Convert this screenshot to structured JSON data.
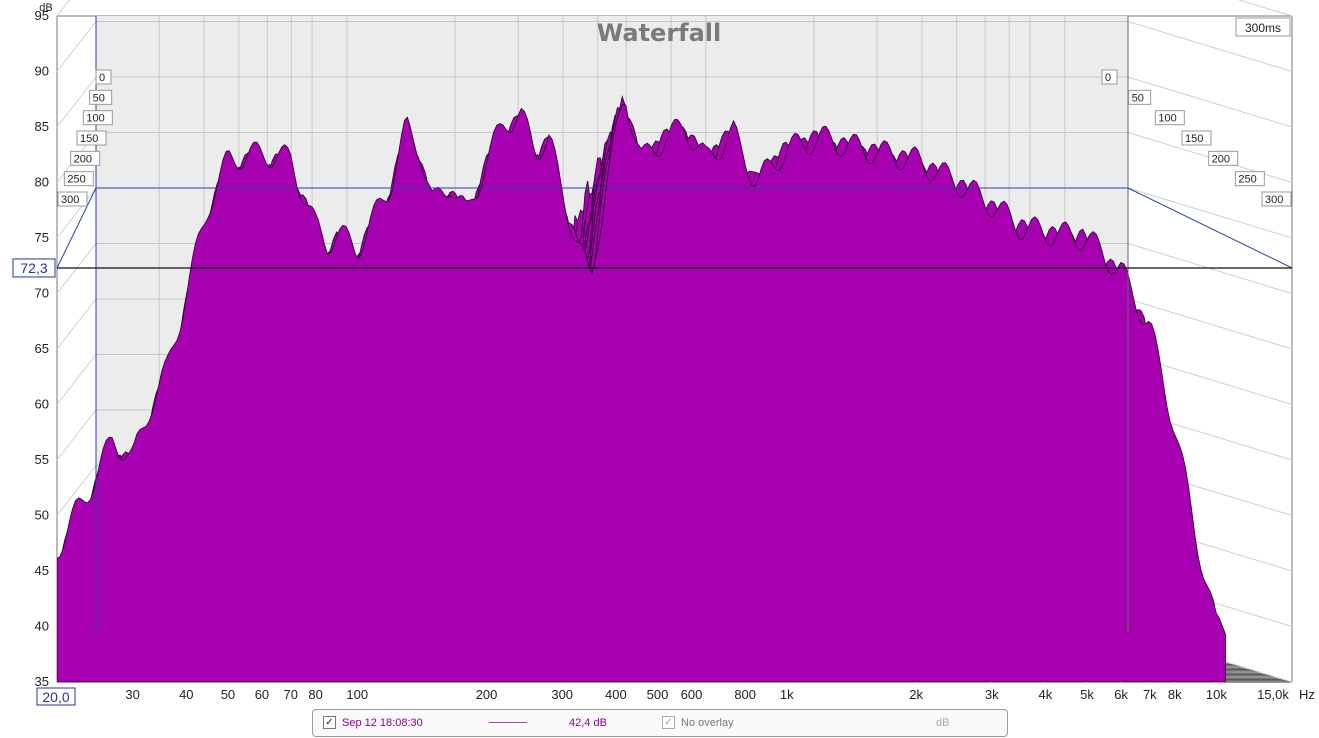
{
  "chart_data": {
    "type": "waterfall",
    "title": "Waterfall",
    "time_range_label": "300ms",
    "ylabel": "dB",
    "xlabel": "Hz",
    "ylim": [
      35,
      95
    ],
    "xlim": [
      20,
      15000
    ],
    "x_scale": "log",
    "y_ticks": [
      "35",
      "40",
      "45",
      "50",
      "55",
      "60",
      "65",
      "70",
      "75",
      "80",
      "85",
      "90",
      "95"
    ],
    "x_ticks": [
      {
        "value": 30,
        "label": "30"
      },
      {
        "value": 40,
        "label": "40"
      },
      {
        "value": 50,
        "label": "50"
      },
      {
        "value": 60,
        "label": "60"
      },
      {
        "value": 70,
        "label": "70"
      },
      {
        "value": 80,
        "label": "80"
      },
      {
        "value": 100,
        "label": "100"
      },
      {
        "value": 200,
        "label": "200"
      },
      {
        "value": 300,
        "label": "300"
      },
      {
        "value": 400,
        "label": "400"
      },
      {
        "value": 500,
        "label": "500"
      },
      {
        "value": 600,
        "label": "600"
      },
      {
        "value": 800,
        "label": "800"
      },
      {
        "value": 1000,
        "label": "1k"
      },
      {
        "value": 2000,
        "label": "2k"
      },
      {
        "value": 3000,
        "label": "3k"
      },
      {
        "value": 4000,
        "label": "4k"
      },
      {
        "value": 5000,
        "label": "5k"
      },
      {
        "value": 6000,
        "label": "6k"
      },
      {
        "value": 7000,
        "label": "7k"
      },
      {
        "value": 8000,
        "label": "8k"
      },
      {
        "value": 10000,
        "label": "10k"
      }
    ],
    "x_min_label": "20,0",
    "x_max_label": "15,0k",
    "time_ticks_ms": [
      "0",
      "50",
      "100",
      "150",
      "200",
      "250",
      "300"
    ],
    "cursor_level_db": 72.3,
    "cursor_level_label": "72,3",
    "color": "#a600b0",
    "front_slice_response": [
      {
        "f": 20,
        "db": 47
      },
      {
        "f": 22,
        "db": 50
      },
      {
        "f": 25,
        "db": 54
      },
      {
        "f": 27,
        "db": 57
      },
      {
        "f": 30,
        "db": 55
      },
      {
        "f": 33,
        "db": 60
      },
      {
        "f": 36,
        "db": 63
      },
      {
        "f": 40,
        "db": 70
      },
      {
        "f": 45,
        "db": 78
      },
      {
        "f": 50,
        "db": 82
      },
      {
        "f": 55,
        "db": 82.5
      },
      {
        "f": 60,
        "db": 82.5
      },
      {
        "f": 65,
        "db": 82.5
      },
      {
        "f": 70,
        "db": 82
      },
      {
        "f": 75,
        "db": 79
      },
      {
        "f": 80,
        "db": 76
      },
      {
        "f": 85,
        "db": 74.5
      },
      {
        "f": 90,
        "db": 75.5
      },
      {
        "f": 100,
        "db": 74
      },
      {
        "f": 110,
        "db": 77
      },
      {
        "f": 120,
        "db": 80
      },
      {
        "f": 130,
        "db": 85
      },
      {
        "f": 140,
        "db": 83
      },
      {
        "f": 150,
        "db": 78
      },
      {
        "f": 165,
        "db": 80
      },
      {
        "f": 180,
        "db": 77
      },
      {
        "f": 200,
        "db": 82
      },
      {
        "f": 220,
        "db": 85.5
      },
      {
        "f": 240,
        "db": 86
      },
      {
        "f": 260,
        "db": 83
      },
      {
        "f": 280,
        "db": 84
      },
      {
        "f": 300,
        "db": 79
      },
      {
        "f": 330,
        "db": 74
      },
      {
        "f": 350,
        "db": 71
      },
      {
        "f": 380,
        "db": 80
      },
      {
        "f": 420,
        "db": 88
      },
      {
        "f": 460,
        "db": 82
      },
      {
        "f": 520,
        "db": 84
      },
      {
        "f": 580,
        "db": 85
      },
      {
        "f": 650,
        "db": 82
      },
      {
        "f": 750,
        "db": 84.5
      },
      {
        "f": 850,
        "db": 80
      },
      {
        "f": 1000,
        "db": 83
      },
      {
        "f": 1200,
        "db": 84
      },
      {
        "f": 1500,
        "db": 83
      },
      {
        "f": 2000,
        "db": 82
      },
      {
        "f": 2500,
        "db": 80
      },
      {
        "f": 3000,
        "db": 78
      },
      {
        "f": 3500,
        "db": 76
      },
      {
        "f": 4000,
        "db": 75.5
      },
      {
        "f": 5000,
        "db": 75
      },
      {
        "f": 6000,
        "db": 72
      },
      {
        "f": 7000,
        "db": 67
      },
      {
        "f": 8000,
        "db": 58
      },
      {
        "f": 9000,
        "db": 48
      },
      {
        "f": 10000,
        "db": 40
      }
    ]
  },
  "legend": {
    "measurement_name": "Sep 12 18:08:30",
    "measurement_level": "42,4 dB",
    "overlay_label": "No overlay",
    "overlay_unit": "dB"
  }
}
